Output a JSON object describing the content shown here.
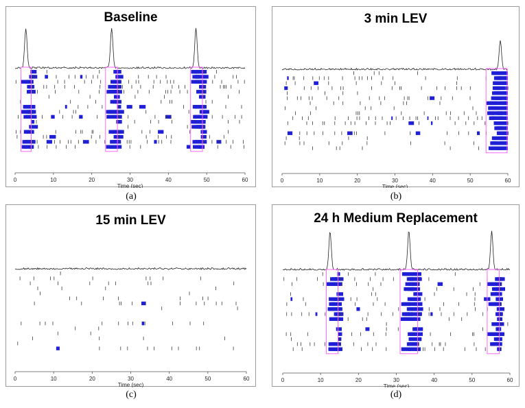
{
  "figure": {
    "captions": [
      "(a)",
      "(b)",
      "(c)",
      "(d)"
    ]
  },
  "colors": {
    "burst": "#1f1fd6",
    "spike": "#3a3a3a",
    "frame": "#ff66ff",
    "trace": "#222222",
    "axis": "#555555"
  },
  "chart_data": [
    {
      "type": "raster",
      "title": "Baseline",
      "xlabel": "Time (sec)",
      "xlim": [
        0,
        60
      ],
      "xticks": [
        0,
        10,
        20,
        30,
        40,
        50,
        60
      ],
      "rows": 16,
      "population_peaks": [
        2.8,
        25.2,
        47.2
      ],
      "burst_windows": [
        [
          1.5,
          4.2
        ],
        [
          23.6,
          26.7
        ],
        [
          45.8,
          48.9
        ]
      ],
      "density": 0.55,
      "seed": 11
    },
    {
      "type": "raster",
      "title": "3 min LEV",
      "xlabel": "Time (sec)",
      "xlim": [
        0,
        60
      ],
      "xticks": [
        0,
        10,
        20,
        30,
        40,
        50,
        60
      ],
      "rows": 16,
      "population_peaks": [
        58.0
      ],
      "burst_windows": [
        [
          54.2,
          59.8
        ]
      ],
      "density": 0.5,
      "seed": 23
    },
    {
      "type": "raster",
      "title": "15 min LEV",
      "xlabel": "Time (sec)",
      "xlim": [
        0,
        60
      ],
      "xticks": [
        0,
        10,
        20,
        30,
        40,
        50,
        60
      ],
      "rows": 16,
      "population_peaks": [],
      "burst_windows": [],
      "density": 0.35,
      "seed": 37
    },
    {
      "type": "raster",
      "title": "24 h Medium Replacement",
      "xlabel": "Time (sec)",
      "xlim": [
        0,
        60
      ],
      "xticks": [
        0,
        10,
        20,
        30,
        40,
        50,
        60
      ],
      "rows": 16,
      "population_peaks": [
        12.5,
        33.3,
        55.2
      ],
      "burst_windows": [
        [
          11.5,
          14.6
        ],
        [
          31.0,
          35.6
        ],
        [
          54.0,
          57.2
        ]
      ],
      "density": 0.45,
      "seed": 53
    }
  ]
}
